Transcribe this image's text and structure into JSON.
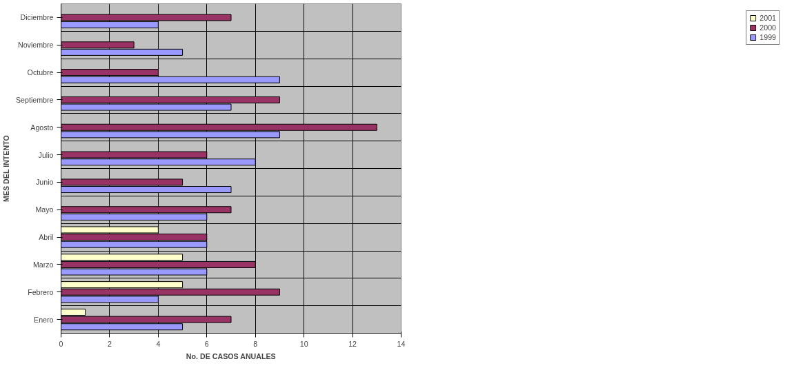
{
  "chart_data": {
    "type": "bar",
    "orientation": "horizontal",
    "xlabel": "No. DE CASOS ANUALES",
    "ylabel": "MES DEL INTENTO",
    "categories": [
      "Diciembre",
      "Noviembre",
      "Octubre",
      "Septiembre",
      "Agosto",
      "Julio",
      "Junio",
      "Mayo",
      "Abril",
      "Marzo",
      "Febrero",
      "Enero"
    ],
    "series": [
      {
        "name": "2001",
        "color": "#ffffcc",
        "values": [
          null,
          null,
          null,
          null,
          null,
          null,
          null,
          null,
          4,
          5,
          5,
          1
        ]
      },
      {
        "name": "2000",
        "color": "#993366",
        "values": [
          7,
          3,
          4,
          9,
          13,
          6,
          5,
          7,
          6,
          8,
          9,
          7
        ]
      },
      {
        "name": "1999",
        "color": "#9999ff",
        "values": [
          4,
          5,
          9,
          7,
          9,
          8,
          7,
          6,
          6,
          6,
          4,
          5
        ]
      }
    ],
    "xlim": [
      0,
      14
    ],
    "xticks": [
      0,
      2,
      4,
      6,
      8,
      10,
      12,
      14
    ],
    "grid": true,
    "legend": "right"
  }
}
